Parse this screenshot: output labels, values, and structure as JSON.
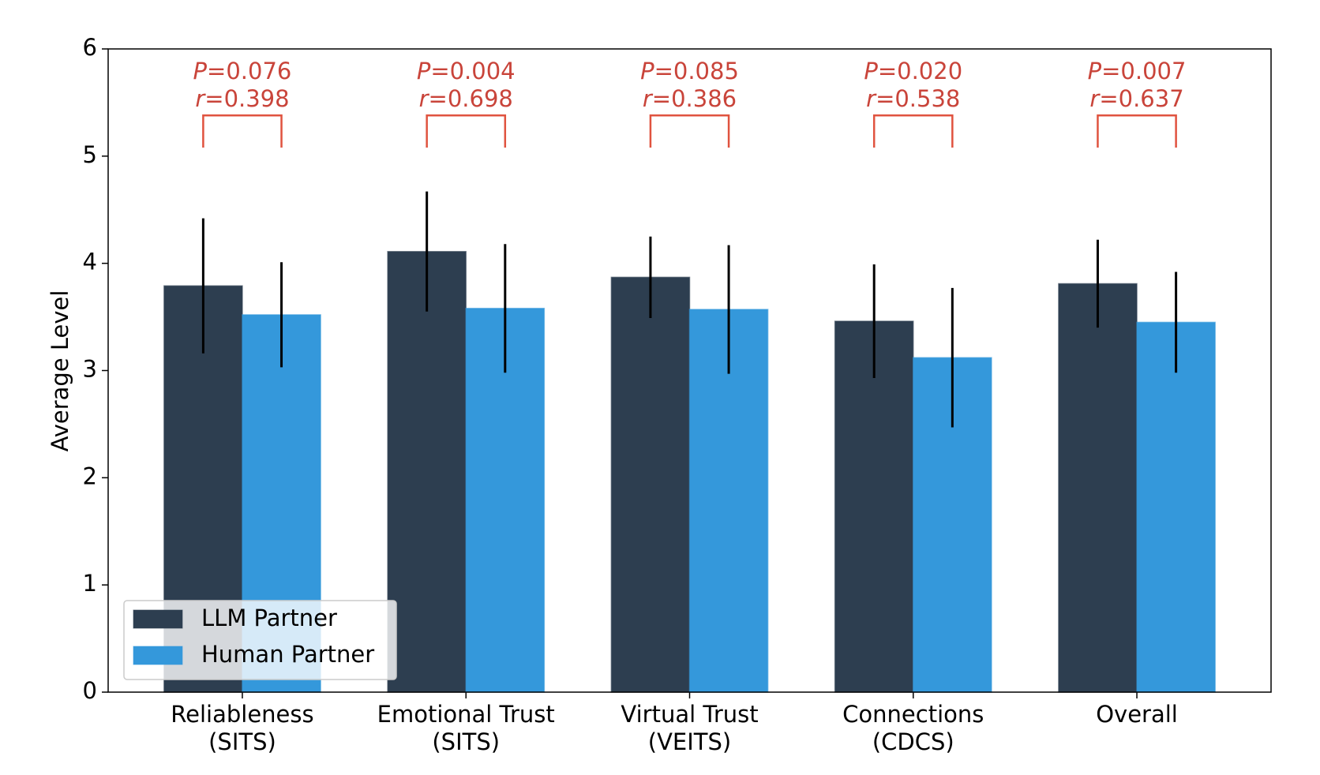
{
  "chart_data": {
    "type": "bar",
    "y_label": "Average Level",
    "categories": [
      [
        "Reliableness",
        "(SITS)"
      ],
      [
        "Emotional Trust",
        "(SITS)"
      ],
      [
        "Virtual Trust",
        "(VEITS)"
      ],
      [
        "Connections",
        "(CDCS)"
      ],
      [
        "Overall",
        null
      ]
    ],
    "series": [
      {
        "name": "LLM Partner",
        "color": "#2d3e50",
        "values": [
          3.79,
          4.11,
          3.87,
          3.46,
          3.81
        ],
        "errors": [
          0.63,
          0.56,
          0.38,
          0.53,
          0.41
        ]
      },
      {
        "name": "Human Partner",
        "color": "#3498db",
        "values": [
          3.52,
          3.58,
          3.57,
          3.12,
          3.45
        ],
        "errors": [
          0.49,
          0.6,
          0.6,
          0.65,
          0.47
        ]
      }
    ],
    "annotations": [
      [
        "P=0.076",
        "r=0.398"
      ],
      [
        "P=0.004",
        "r=0.698"
      ],
      [
        "P=0.085",
        "r=0.386"
      ],
      [
        "P=0.020",
        "r=0.538"
      ],
      [
        "P=0.007",
        "r=0.637"
      ]
    ],
    "ylim": [
      0,
      6
    ],
    "yticks": [
      0,
      1,
      2,
      3,
      4,
      5,
      6
    ],
    "legend": "lower left"
  }
}
